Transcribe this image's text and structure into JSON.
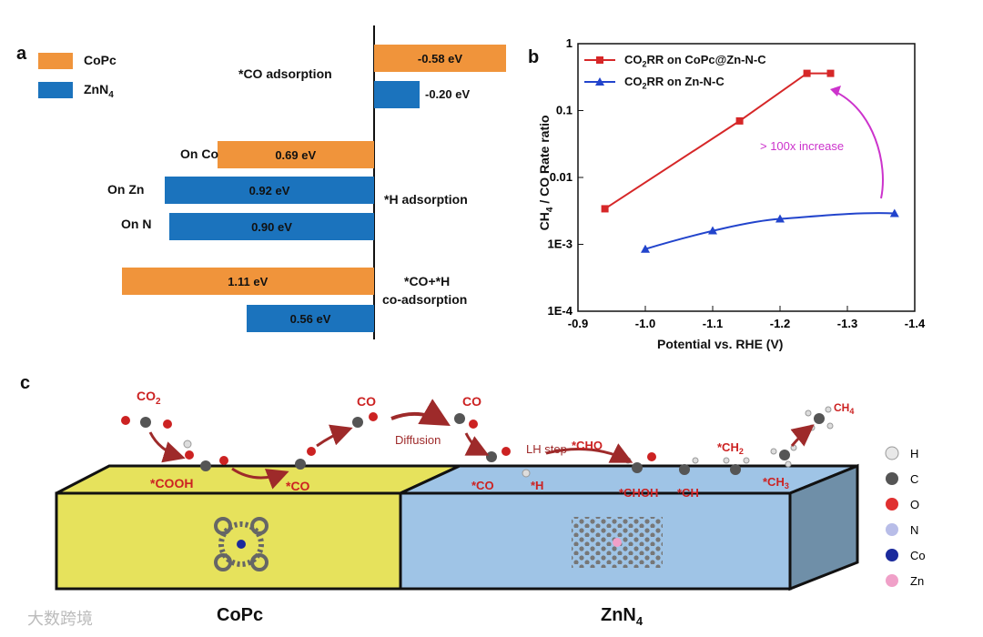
{
  "colors": {
    "copc": "#f0943b",
    "znn4": "#1b73bd",
    "red": "#d62728",
    "blue": "#2244cc",
    "magenta": "#cc33cc",
    "yellow": "#e6e25c",
    "lightblue": "#9fc4e6",
    "molRed": "#cc2222",
    "arrow": "#9e2a2a"
  },
  "panel_a": {
    "letter": "a",
    "legend": [
      {
        "label": "CoPc"
      },
      {
        "label": "ZnN",
        "sub": "4"
      }
    ],
    "groups": {
      "co": "*CO adsorption",
      "h": "*H adsorption",
      "coh_line1": "*CO+*H",
      "coh_line2": "co-adsorption"
    },
    "site_labels": {
      "co": "On Co",
      "zn": "On Zn",
      "n": "On N"
    }
  },
  "chart_data": [
    {
      "type": "bar",
      "orientation": "horizontal",
      "title": "",
      "series": [
        {
          "name": "CoPc",
          "values": [
            -0.58,
            0.69,
            1.11
          ],
          "categories": [
            "*CO adsorption",
            "*H adsorption (On Co)",
            "*CO+*H co-adsorption"
          ],
          "labels": [
            "-0.58 eV",
            "0.69 eV",
            "1.11 eV"
          ]
        },
        {
          "name": "ZnN4",
          "values": [
            -0.2,
            0.92,
            0.9,
            0.56
          ],
          "categories": [
            "*CO adsorption",
            "*H adsorption (On Zn)",
            "*H adsorption (On N)",
            "*CO+*H co-adsorption"
          ],
          "labels": [
            "-0.20 eV",
            "0.92 eV",
            "0.90 eV",
            "0.56 eV"
          ]
        }
      ]
    },
    {
      "type": "line",
      "title": "",
      "xlabel": "Potential vs. RHE (V)",
      "ylabel": "CH4 / CO Rate ratio",
      "xlim": [
        -0.9,
        -1.4
      ],
      "ylim_log10": [
        -4,
        0
      ],
      "x_ticks": [
        "-0.9",
        "-1.0",
        "-1.1",
        "-1.2",
        "-1.3",
        "-1.4"
      ],
      "y_ticks": [
        "1E-4",
        "1E-3",
        "0.01",
        "0.1",
        "1"
      ],
      "series": [
        {
          "name": "CO2RR on CoPc@Zn-N-C",
          "x": [
            -0.94,
            -1.14,
            -1.24,
            -1.275
          ],
          "y": [
            0.0034,
            0.07,
            0.36,
            0.36
          ]
        },
        {
          "name": "CO2RR on Zn-N-C",
          "x": [
            -1.0,
            -1.1,
            -1.2,
            -1.37
          ],
          "y": [
            0.00085,
            0.0016,
            0.0024,
            0.0029
          ]
        }
      ],
      "annotation": "> 100x increase"
    }
  ],
  "panel_b": {
    "letter": "b",
    "legend": [
      {
        "pre": "CO",
        "sub": "2",
        "post": "RR on CoPc@Zn-N-C"
      },
      {
        "pre": "CO",
        "sub": "2",
        "post": "RR on Zn-N-C"
      }
    ],
    "ylabel_pre": "CH",
    "ylabel_sub": "4",
    "ylabel_post": " / CO Rate ratio"
  },
  "panel_c": {
    "letter": "c",
    "mol_labels": {
      "co2": "CO",
      "co2_sub": "2",
      "cooh": "*COOH",
      "co_a": "*CO",
      "co_gas1": "CO",
      "diffusion": "Diffusion",
      "co_gas2": "CO",
      "co_b": "*CO",
      "h": "*H",
      "lh": "LH step",
      "cho": "*CHO",
      "choh": "*CHOH",
      "ch": "*CH",
      "ch2": "*CH",
      "ch2_sub": "2",
      "ch3": "*CH",
      "ch3_sub": "3",
      "ch4": "CH",
      "ch4_sub": "4"
    },
    "block_left": "CoPc",
    "block_right": "ZnN",
    "block_right_sub": "4",
    "atom_legend": [
      "H",
      "C",
      "O",
      "N",
      "Co",
      "Zn"
    ],
    "watermark": "大数跨境"
  }
}
